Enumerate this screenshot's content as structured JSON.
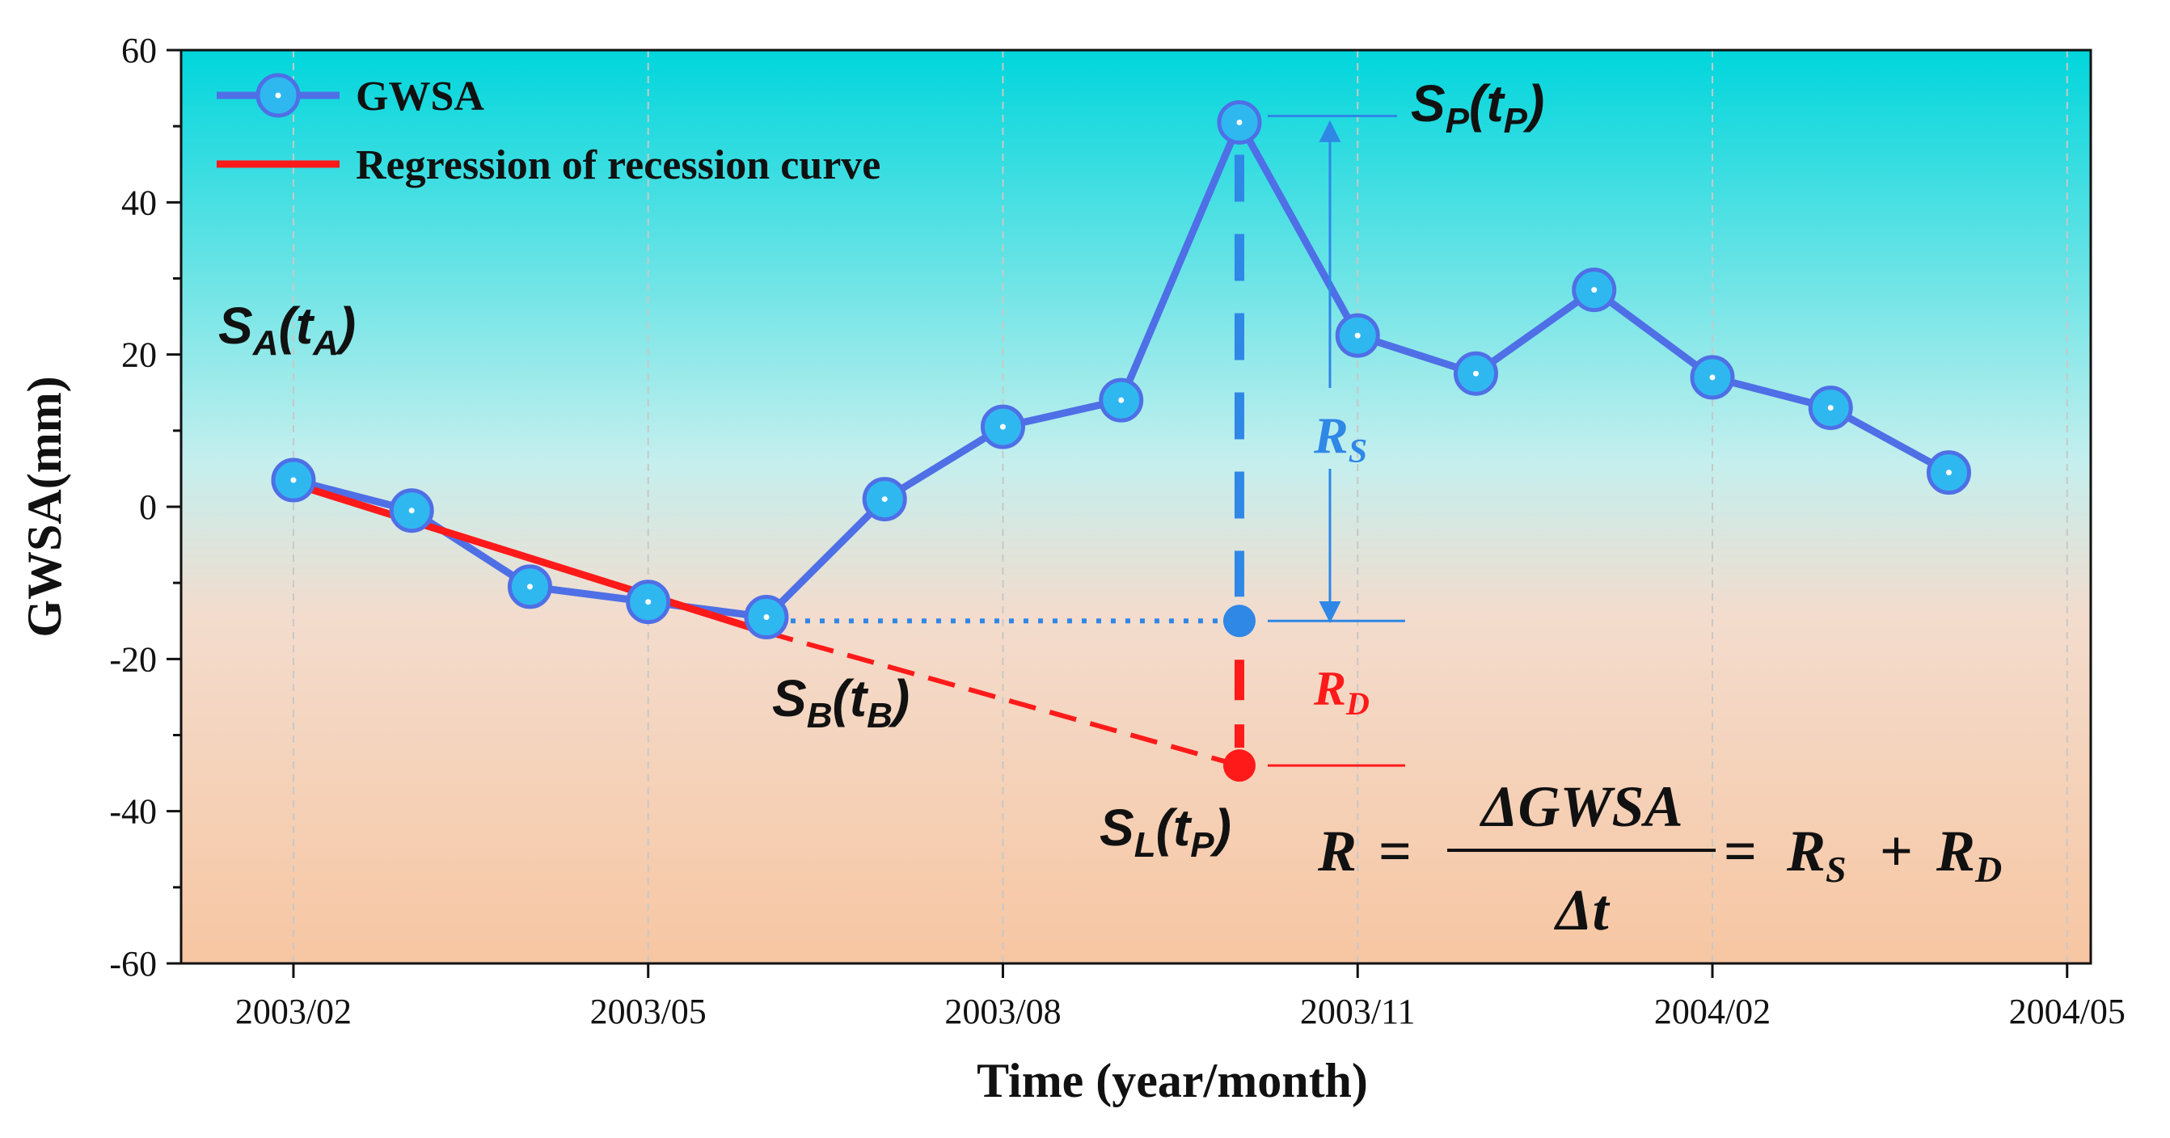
{
  "chart_data": {
    "type": "line",
    "title": "",
    "xlabel": "Time (year/month)",
    "ylabel": "GWSA(mm)",
    "ylim": [
      -60,
      60
    ],
    "yticks": [
      -60,
      -40,
      -20,
      0,
      20,
      40,
      60
    ],
    "xticks": [
      {
        "label": "2003/02",
        "t": 0
      },
      {
        "label": "2003/05",
        "t": 3
      },
      {
        "label": "2003/08",
        "t": 6
      },
      {
        "label": "2003/11",
        "t": 9
      },
      {
        "label": "2004/02",
        "t": 12
      },
      {
        "label": "2004/05",
        "t": 15
      }
    ],
    "xlim": [
      -0.95,
      15.2
    ],
    "grid": true,
    "legend_position": "top-left",
    "series": [
      {
        "name": "GWSA",
        "color": "#4f6fe6",
        "x": [
          0,
          1,
          2,
          3,
          4,
          5,
          6,
          7,
          8,
          9,
          10,
          11,
          12,
          13,
          14
        ],
        "values": [
          3.5,
          -0.5,
          -10.5,
          -12.5,
          -14.5,
          1.0,
          10.5,
          14.0,
          50.5,
          22.5,
          17.5,
          28.5,
          17.0,
          13.0,
          4.5
        ]
      },
      {
        "name": "Regression of recession curve",
        "color": "#ff1a1a",
        "fitted": {
          "x_start": 0,
          "y_start": 3.0,
          "x_end": 4,
          "y_end": -16.5
        },
        "extrapolated": {
          "x_start": 4,
          "y_start": -16.5,
          "x_end": 8,
          "y_end": -34.0
        }
      }
    ],
    "markers": {
      "storage_level_point": {
        "x": 8,
        "y": -15.0,
        "color": "#2f87e6"
      },
      "lower_limit_point": {
        "x": 8,
        "y": -34.0,
        "color": "#ff1a1a"
      }
    },
    "annotations": {
      "sa": {
        "S": "S",
        "sub": "A",
        "t": "t",
        "tsub": "A"
      },
      "sb": {
        "S": "S",
        "sub": "B",
        "t": "t",
        "tsub": "B"
      },
      "sp": {
        "S": "S",
        "sub": "P",
        "t": "t",
        "tsub": "P"
      },
      "sl": {
        "S": "S",
        "sub": "L",
        "t": "t",
        "tsub": "P"
      },
      "rs": {
        "main": "R",
        "sub": "S"
      },
      "rd": {
        "main": "R",
        "sub": "D"
      },
      "formula": {
        "lhs": "R",
        "eq": "=",
        "numerator": "ΔGWSA",
        "denominator": "Δt",
        "eq2": "=",
        "rs_main": "R",
        "rs_sub": "S",
        "plus": "+",
        "rd_main": "R",
        "rd_sub": "D"
      }
    },
    "colors": {
      "gwsa_line": "#4f6fe6",
      "gwsa_marker_fill": "#2fb8f0",
      "regression": "#ff1a1a",
      "rs_text": "#2f87e6",
      "rd_text": "#ff1a1a",
      "bg_top": "#00d6dc",
      "bg_mid": "#bfeeee",
      "bg_bottom": "#f7c9a8"
    }
  }
}
